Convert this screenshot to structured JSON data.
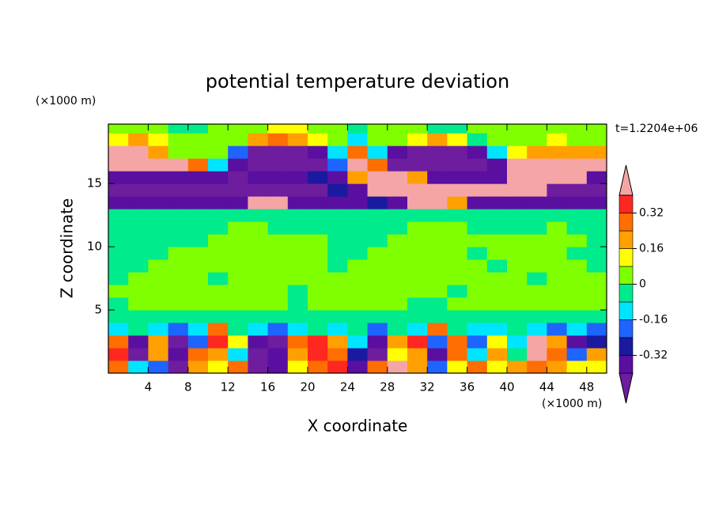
{
  "chart_data": {
    "type": "contour",
    "title": "potential temperature deviation",
    "x_label": "X coordinate",
    "y_label": "Z coordinate",
    "x_unit": "(×1000 m)",
    "y_unit": "(×1000 m)",
    "time_label": "t=1.2204e+06",
    "xlim": [
      0,
      50
    ],
    "ylim": [
      0,
      19.7
    ],
    "xticks": [
      4,
      8,
      12,
      16,
      20,
      24,
      28,
      32,
      36,
      40,
      44,
      48
    ],
    "yticks": [
      5,
      10,
      15
    ],
    "levels": [
      -0.4,
      -0.32,
      -0.24,
      -0.16,
      -0.08,
      0,
      0.08,
      0.16,
      0.24,
      0.32,
      0.4
    ],
    "colors": [
      "#6e1d9e",
      "#5a0fa0",
      "#1a1aa0",
      "#1e64ff",
      "#00e5ff",
      "#00eb8c",
      "#80ff00",
      "#ffff00",
      "#ffa000",
      "#ff6e00",
      "#ff2820",
      "#f5a5a5"
    ],
    "colorbar_ticks": [
      0.32,
      0.16,
      0,
      -0.16,
      -0.32
    ],
    "x": [
      1,
      3,
      5,
      7,
      9,
      11,
      13,
      15,
      17,
      19,
      21,
      23,
      25,
      27,
      29,
      31,
      33,
      35,
      37,
      39,
      41,
      43,
      45,
      47,
      49
    ],
    "z": [
      0.5,
      1.5,
      2.5,
      3.5,
      4.5,
      5.5,
      6.5,
      7.5,
      8.5,
      9.5,
      10.5,
      11.5,
      12.5,
      13.5,
      14.5,
      15.5,
      16.5,
      17.5,
      18.5,
      19.5
    ],
    "values": [
      [
        0.28,
        -0.12,
        -0.2,
        -0.45,
        0.2,
        0.12,
        0.28,
        -0.45,
        -0.36,
        0.12,
        0.28,
        0.36,
        -0.36,
        0.28,
        0.45,
        0.2,
        -0.2,
        0.12,
        0.28,
        0.12,
        0.2,
        0.28,
        0.2,
        0.12,
        0.12
      ],
      [
        0.36,
        -0.45,
        0.2,
        -0.36,
        0.28,
        0.2,
        -0.12,
        -0.45,
        -0.36,
        0.2,
        0.36,
        0.28,
        -0.28,
        -0.45,
        0.12,
        0.2,
        -0.36,
        0.28,
        -0.12,
        0.2,
        -0.04,
        0.45,
        0.28,
        -0.2,
        0.2
      ],
      [
        0.28,
        -0.36,
        0.2,
        -0.45,
        -0.2,
        0.36,
        0.12,
        -0.36,
        -0.45,
        0.28,
        0.36,
        0.2,
        -0.12,
        -0.36,
        0.2,
        0.36,
        -0.2,
        0.28,
        -0.2,
        0.12,
        -0.12,
        0.45,
        0.2,
        -0.36,
        -0.28
      ],
      [
        -0.12,
        -0.04,
        -0.12,
        -0.2,
        -0.12,
        0.28,
        -0.04,
        -0.12,
        -0.2,
        -0.12,
        -0.04,
        -0.12,
        -0.04,
        -0.2,
        -0.04,
        -0.12,
        0.28,
        -0.04,
        -0.12,
        -0.12,
        -0.04,
        -0.12,
        -0.2,
        -0.12,
        -0.2
      ],
      [
        -0.04,
        -0.04,
        -0.04,
        -0.04,
        -0.04,
        -0.04,
        -0.04,
        -0.04,
        -0.04,
        -0.04,
        -0.04,
        -0.04,
        -0.04,
        -0.04,
        -0.04,
        -0.04,
        -0.04,
        -0.04,
        -0.04,
        -0.04,
        -0.04,
        -0.04,
        -0.04,
        -0.04,
        -0.04
      ],
      [
        -0.04,
        0.04,
        0.04,
        0.04,
        0.04,
        0.04,
        0.04,
        0.04,
        0.04,
        -0.04,
        0.04,
        0.04,
        0.04,
        0.04,
        0.04,
        -0.04,
        -0.04,
        0.04,
        0.04,
        0.04,
        0.04,
        0.04,
        0.04,
        0.04,
        0.04
      ],
      [
        0.04,
        0.04,
        0.04,
        0.04,
        0.04,
        0.04,
        0.04,
        0.04,
        0.04,
        -0.04,
        0.04,
        0.04,
        0.04,
        0.04,
        0.04,
        0.04,
        0.04,
        -0.04,
        0.04,
        0.04,
        0.04,
        0.04,
        0.04,
        0.04,
        0.04
      ],
      [
        -0.04,
        0.04,
        0.04,
        0.04,
        0.04,
        -0.04,
        0.04,
        0.04,
        0.04,
        0.04,
        0.04,
        0.04,
        0.04,
        0.04,
        0.04,
        0.04,
        0.04,
        0.04,
        0.04,
        0.04,
        0.04,
        -0.04,
        0.04,
        0.04,
        0.04
      ],
      [
        -0.04,
        -0.04,
        0.04,
        0.04,
        0.04,
        0.04,
        0.04,
        0.04,
        0.04,
        0.04,
        0.04,
        -0.04,
        0.04,
        0.04,
        0.04,
        0.04,
        0.04,
        0.04,
        0.04,
        -0.04,
        0.04,
        0.04,
        0.04,
        0.04,
        -0.04
      ],
      [
        -0.04,
        -0.04,
        -0.04,
        0.04,
        0.04,
        0.04,
        0.04,
        0.04,
        0.04,
        0.04,
        0.04,
        -0.04,
        -0.04,
        0.04,
        0.04,
        0.04,
        0.04,
        0.04,
        -0.04,
        0.04,
        0.04,
        0.04,
        0.04,
        -0.04,
        -0.04
      ],
      [
        -0.04,
        -0.04,
        -0.04,
        -0.04,
        -0.04,
        0.04,
        0.04,
        0.04,
        0.04,
        0.04,
        0.04,
        -0.04,
        -0.04,
        -0.04,
        0.04,
        0.04,
        0.04,
        0.04,
        0.04,
        0.04,
        0.04,
        0.04,
        0.04,
        0.04,
        -0.04
      ],
      [
        -0.04,
        -0.04,
        -0.04,
        -0.04,
        -0.04,
        -0.04,
        0.04,
        0.04,
        -0.04,
        -0.04,
        -0.04,
        -0.04,
        -0.04,
        -0.04,
        -0.04,
        0.04,
        0.04,
        0.04,
        -0.04,
        -0.04,
        -0.04,
        -0.04,
        0.04,
        -0.04,
        -0.04
      ],
      [
        -0.04,
        -0.04,
        -0.04,
        -0.04,
        -0.04,
        -0.04,
        -0.04,
        -0.04,
        -0.04,
        -0.04,
        -0.04,
        -0.04,
        -0.04,
        -0.04,
        -0.04,
        -0.04,
        -0.04,
        -0.04,
        -0.04,
        -0.04,
        -0.04,
        -0.04,
        -0.04,
        -0.04,
        -0.04
      ],
      [
        -0.36,
        -0.36,
        -0.36,
        -0.36,
        -0.36,
        -0.36,
        -0.36,
        0.45,
        0.45,
        -0.36,
        -0.36,
        -0.36,
        -0.36,
        -0.28,
        -0.36,
        0.45,
        0.45,
        0.2,
        -0.36,
        -0.36,
        -0.36,
        -0.36,
        -0.36,
        -0.36,
        -0.36
      ],
      [
        -0.45,
        -0.45,
        -0.45,
        -0.45,
        -0.45,
        -0.45,
        -0.45,
        -0.45,
        -0.45,
        -0.45,
        -0.45,
        -0.28,
        -0.36,
        0.45,
        0.45,
        0.45,
        0.45,
        0.45,
        0.45,
        0.45,
        0.45,
        0.45,
        -0.45,
        -0.45,
        -0.45
      ],
      [
        -0.36,
        -0.36,
        -0.36,
        -0.36,
        -0.36,
        -0.36,
        -0.45,
        -0.36,
        -0.36,
        -0.36,
        -0.28,
        -0.36,
        0.2,
        0.45,
        0.45,
        0.2,
        -0.36,
        -0.36,
        -0.36,
        -0.36,
        0.45,
        0.45,
        0.45,
        0.45,
        -0.36
      ],
      [
        0.45,
        0.45,
        0.45,
        0.45,
        0.28,
        -0.12,
        -0.36,
        -0.45,
        -0.45,
        -0.45,
        -0.45,
        -0.2,
        0.45,
        0.28,
        -0.45,
        -0.45,
        -0.45,
        -0.45,
        -0.45,
        -0.36,
        0.45,
        0.45,
        0.45,
        0.45,
        0.45
      ],
      [
        0.45,
        0.45,
        0.2,
        0.04,
        0.04,
        0.04,
        -0.2,
        -0.45,
        -0.45,
        -0.45,
        -0.36,
        -0.12,
        0.28,
        -0.12,
        -0.36,
        -0.45,
        -0.45,
        -0.45,
        -0.36,
        -0.12,
        0.12,
        0.2,
        0.2,
        0.2,
        0.2
      ],
      [
        0.12,
        0.2,
        0.12,
        0.04,
        0.04,
        0.04,
        0.04,
        0.2,
        0.28,
        0.2,
        0.12,
        0.04,
        -0.12,
        0.04,
        0.04,
        0.12,
        0.2,
        0.12,
        -0.04,
        0.04,
        0.04,
        0.04,
        0.12,
        0.04,
        0.04
      ],
      [
        0.04,
        0.04,
        0.04,
        -0.04,
        -0.04,
        0.04,
        0.04,
        0.04,
        0.12,
        0.12,
        0.04,
        0.04,
        -0.04,
        0.04,
        0.04,
        0.04,
        -0.04,
        -0.04,
        0.04,
        0.04,
        0.04,
        0.04,
        0.04,
        0.04,
        0.04
      ]
    ]
  }
}
